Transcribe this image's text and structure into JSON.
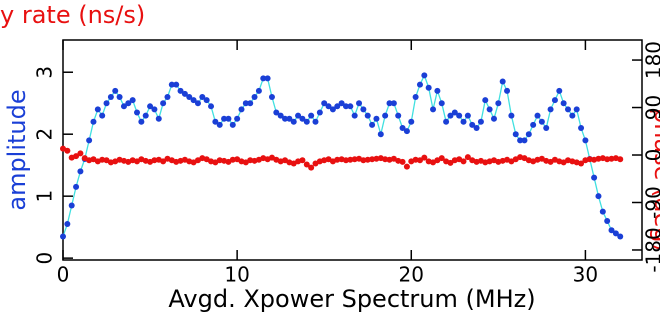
{
  "chart_data": {
    "type": "line",
    "title": "y rate (ns/s)",
    "xlabel": "Avgd. Xpower Spectrum (MHz)",
    "ylabel": "amplitude",
    "y2label": "phase (deg)",
    "xlim": [
      0,
      33.25
    ],
    "xticks": [
      0,
      10,
      20,
      30
    ],
    "ylim": [
      -0.03,
      3.52
    ],
    "yticks": [
      0,
      1,
      2,
      3
    ],
    "y2lim": [
      -199,
      218
    ],
    "y2ticks": [
      -180,
      -90,
      0,
      90,
      180
    ],
    "x": [
      0,
      0.25,
      0.5,
      0.75,
      1,
      1.25,
      1.5,
      1.75,
      2,
      2.25,
      2.5,
      2.75,
      3,
      3.25,
      3.5,
      3.75,
      4,
      4.25,
      4.5,
      4.75,
      5,
      5.25,
      5.5,
      5.75,
      6,
      6.25,
      6.5,
      6.75,
      7,
      7.25,
      7.5,
      7.75,
      8,
      8.25,
      8.5,
      8.75,
      9,
      9.25,
      9.5,
      9.75,
      10,
      10.25,
      10.5,
      10.75,
      11,
      11.25,
      11.5,
      11.75,
      12,
      12.25,
      12.5,
      12.75,
      13,
      13.25,
      13.5,
      13.75,
      14,
      14.25,
      14.5,
      14.75,
      15,
      15.25,
      15.5,
      15.75,
      16,
      16.25,
      16.5,
      16.75,
      17,
      17.25,
      17.5,
      17.75,
      18,
      18.25,
      18.5,
      18.75,
      19,
      19.25,
      19.5,
      19.75,
      20,
      20.25,
      20.5,
      20.75,
      21,
      21.25,
      21.5,
      21.75,
      22,
      22.25,
      22.5,
      22.75,
      23,
      23.25,
      23.5,
      23.75,
      24,
      24.25,
      24.5,
      24.75,
      25,
      25.25,
      25.5,
      25.75,
      26,
      26.25,
      26.5,
      26.75,
      27,
      27.25,
      27.5,
      27.75,
      28,
      28.25,
      28.5,
      28.75,
      29,
      29.25,
      29.5,
      29.75,
      30,
      30.25,
      30.5,
      30.75,
      31,
      31.25,
      31.5,
      31.75,
      32
    ],
    "series": [
      {
        "name": "amplitude",
        "color": "#1a3fd6",
        "line_color": "#40e0e0",
        "values": [
          0.35,
          0.55,
          0.85,
          1.15,
          1.4,
          1.6,
          1.9,
          2.2,
          2.4,
          2.3,
          2.5,
          2.6,
          2.7,
          2.6,
          2.45,
          2.5,
          2.55,
          2.35,
          2.2,
          2.3,
          2.45,
          2.4,
          2.25,
          2.5,
          2.6,
          2.8,
          2.8,
          2.7,
          2.65,
          2.6,
          2.55,
          2.5,
          2.6,
          2.55,
          2.45,
          2.2,
          2.15,
          2.25,
          2.25,
          2.15,
          2.25,
          2.4,
          2.5,
          2.5,
          2.6,
          2.7,
          2.9,
          2.9,
          2.6,
          2.35,
          2.3,
          2.25,
          2.25,
          2.2,
          2.3,
          2.25,
          2.2,
          2.3,
          2.2,
          2.35,
          2.5,
          2.45,
          2.4,
          2.45,
          2.5,
          2.45,
          2.45,
          2.3,
          2.5,
          2.4,
          2.3,
          2.15,
          2.25,
          2.0,
          2.3,
          2.5,
          2.5,
          2.3,
          2.1,
          2.05,
          2.2,
          2.6,
          2.8,
          2.95,
          2.75,
          2.4,
          2.7,
          2.5,
          2.2,
          2.3,
          2.35,
          2.3,
          2.2,
          2.3,
          2.15,
          2.1,
          2.2,
          2.55,
          2.4,
          2.25,
          2.5,
          2.85,
          2.7,
          2.3,
          2.0,
          1.9,
          1.9,
          2.0,
          2.15,
          2.3,
          2.2,
          2.1,
          2.4,
          2.55,
          2.7,
          2.5,
          2.4,
          2.3,
          2.4,
          2.1,
          1.9,
          1.6,
          1.3,
          1.0,
          0.75,
          0.6,
          0.45,
          0.4,
          0.35
        ]
      },
      {
        "name": "phase",
        "color": "#e81010",
        "axis": "y2",
        "values": [
          12,
          8,
          -5,
          -2,
          3,
          -6,
          -10,
          -8,
          -12,
          -9,
          -10,
          -14,
          -12,
          -9,
          -11,
          -13,
          -10,
          -12,
          -8,
          -11,
          -13,
          -10,
          -9,
          -12,
          -7,
          -10,
          -13,
          -11,
          -9,
          -12,
          -14,
          -10,
          -6,
          -8,
          -12,
          -14,
          -10,
          -11,
          -13,
          -9,
          -8,
          -12,
          -14,
          -10,
          -11,
          -9,
          -6,
          -8,
          -5,
          -9,
          -12,
          -10,
          -14,
          -16,
          -12,
          -10,
          -18,
          -24,
          -16,
          -12,
          -10,
          -8,
          -12,
          -9,
          -8,
          -10,
          -9,
          -8,
          -7,
          -10,
          -9,
          -8,
          -7,
          -6,
          -8,
          -9,
          -7,
          -11,
          -13,
          -22,
          -12,
          -9,
          -10,
          -5,
          -12,
          -14,
          -10,
          -6,
          -12,
          -15,
          -10,
          -8,
          -12,
          -4,
          -10,
          -13,
          -11,
          -14,
          -12,
          -10,
          -13,
          -11,
          -9,
          -12,
          -8,
          -4,
          -6,
          -10,
          -12,
          -9,
          -7,
          -11,
          -13,
          -9,
          -12,
          -14,
          -10,
          -12,
          -14,
          -16,
          -10,
          -8,
          -9,
          -7,
          -6,
          -8,
          -7,
          -6,
          -8
        ]
      }
    ]
  }
}
